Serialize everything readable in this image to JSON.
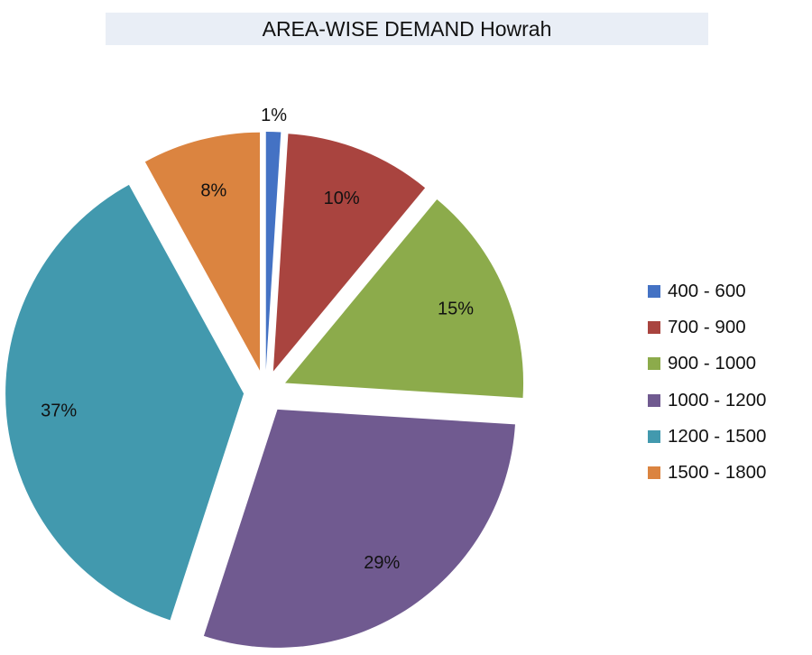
{
  "chart_data": {
    "type": "pie",
    "title": "AREA-WISE DEMAND Howrah",
    "categories": [
      "400 - 600",
      "700 - 900",
      "900 - 1000",
      "1000 - 1200",
      "1200 - 1500",
      "1500 - 1800"
    ],
    "values": [
      1,
      10,
      15,
      29,
      37,
      8
    ],
    "labels": [
      "1%",
      "10%",
      "15%",
      "29%",
      "37%",
      "8%"
    ],
    "colors": [
      "#4472c4",
      "#a9443f",
      "#8cab4b",
      "#705a90",
      "#4299ae",
      "#db8440"
    ],
    "exploded": true,
    "legend_position": "right"
  }
}
